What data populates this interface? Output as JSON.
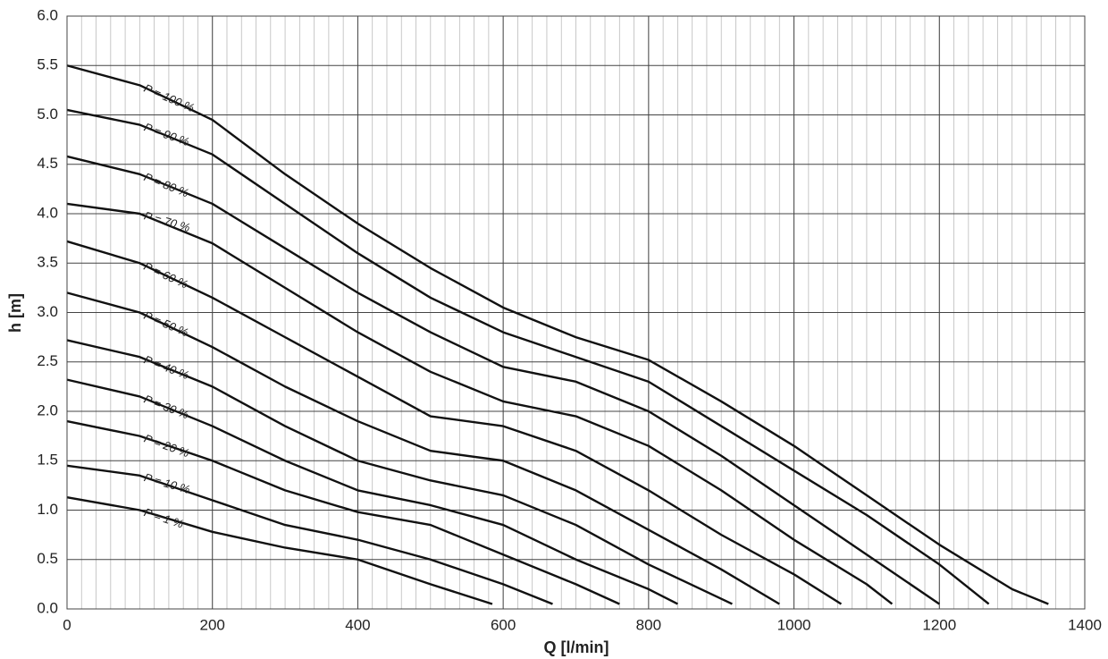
{
  "chart_data": {
    "type": "line",
    "xlabel": "Q [l/min]",
    "ylabel": "h [m]",
    "xlim": [
      0,
      1400
    ],
    "ylim": [
      0,
      6
    ],
    "xticks": [
      0,
      200,
      400,
      600,
      800,
      1000,
      1200,
      1400
    ],
    "yticks": [
      {
        "value": 0,
        "label": "0.0"
      },
      0.5,
      {
        "value": 1,
        "label": "1.0"
      },
      1.5,
      {
        "value": 2,
        "label": "2.0"
      },
      2.5,
      {
        "value": 3,
        "label": "3.0"
      },
      3.5,
      {
        "value": 4,
        "label": "4.0"
      },
      4.5,
      {
        "value": 5,
        "label": "5.0"
      },
      5.5,
      {
        "value": 6,
        "label": "6.0"
      }
    ],
    "grid": true,
    "minor_x_step": 20,
    "series": [
      {
        "name": "P = 100 %",
        "color": "#111111",
        "x": [
          0,
          100,
          200,
          300,
          400,
          500,
          600,
          700,
          800,
          900,
          1000,
          1100,
          1200,
          1300,
          1350
        ],
        "values": [
          5.5,
          5.3,
          4.95,
          4.4,
          3.9,
          3.45,
          3.05,
          2.75,
          2.52,
          2.1,
          1.65,
          1.15,
          0.65,
          0.2,
          0.05
        ]
      },
      {
        "name": "P = 90 %",
        "color": "#111111",
        "x": [
          0,
          100,
          200,
          300,
          400,
          500,
          600,
          700,
          800,
          900,
          1000,
          1100,
          1200,
          1268
        ],
        "values": [
          5.05,
          4.9,
          4.6,
          4.1,
          3.6,
          3.15,
          2.8,
          2.55,
          2.3,
          1.85,
          1.4,
          0.95,
          0.45,
          0.05
        ]
      },
      {
        "name": "P = 80 %",
        "color": "#111111",
        "x": [
          0,
          100,
          200,
          300,
          400,
          500,
          600,
          700,
          800,
          900,
          1000,
          1100,
          1200
        ],
        "values": [
          4.58,
          4.4,
          4.1,
          3.65,
          3.2,
          2.8,
          2.45,
          2.3,
          2.0,
          1.55,
          1.05,
          0.55,
          0.05
        ]
      },
      {
        "name": "P = 70 %",
        "color": "#111111",
        "x": [
          0,
          100,
          200,
          300,
          400,
          500,
          600,
          700,
          800,
          900,
          1000,
          1100,
          1135
        ],
        "values": [
          4.1,
          4.0,
          3.7,
          3.25,
          2.8,
          2.4,
          2.1,
          1.95,
          1.65,
          1.2,
          0.7,
          0.25,
          0.05
        ]
      },
      {
        "name": "P = 60 %",
        "color": "#111111",
        "x": [
          0,
          100,
          200,
          300,
          400,
          500,
          600,
          700,
          800,
          900,
          1000,
          1065
        ],
        "values": [
          3.72,
          3.5,
          3.15,
          2.75,
          2.35,
          1.95,
          1.85,
          1.6,
          1.2,
          0.75,
          0.35,
          0.05
        ]
      },
      {
        "name": "P = 50 %",
        "color": "#111111",
        "x": [
          0,
          100,
          200,
          300,
          400,
          500,
          600,
          700,
          800,
          900,
          980
        ],
        "values": [
          3.2,
          3.0,
          2.65,
          2.25,
          1.9,
          1.6,
          1.5,
          1.2,
          0.8,
          0.4,
          0.05
        ]
      },
      {
        "name": "P = 40 %",
        "color": "#111111",
        "x": [
          0,
          100,
          200,
          300,
          400,
          500,
          600,
          700,
          800,
          915
        ],
        "values": [
          2.72,
          2.55,
          2.25,
          1.85,
          1.5,
          1.3,
          1.15,
          0.85,
          0.45,
          0.05
        ]
      },
      {
        "name": "P = 30 %",
        "color": "#111111",
        "x": [
          0,
          100,
          200,
          300,
          400,
          500,
          600,
          700,
          800,
          840
        ],
        "values": [
          2.32,
          2.15,
          1.85,
          1.5,
          1.2,
          1.05,
          0.85,
          0.5,
          0.2,
          0.05
        ]
      },
      {
        "name": "P = 20 %",
        "color": "#111111",
        "x": [
          0,
          100,
          200,
          300,
          400,
          500,
          600,
          700,
          760
        ],
        "values": [
          1.9,
          1.75,
          1.5,
          1.2,
          0.98,
          0.85,
          0.55,
          0.25,
          0.05
        ]
      },
      {
        "name": "P = 10 %",
        "color": "#111111",
        "x": [
          0,
          100,
          200,
          300,
          400,
          500,
          600,
          668
        ],
        "values": [
          1.45,
          1.35,
          1.1,
          0.85,
          0.7,
          0.5,
          0.25,
          0.05
        ]
      },
      {
        "name": "P = 1 %",
        "color": "#111111",
        "x": [
          0,
          100,
          200,
          300,
          400,
          500,
          585
        ],
        "values": [
          1.13,
          1.0,
          0.78,
          0.62,
          0.5,
          0.25,
          0.05
        ]
      }
    ]
  }
}
